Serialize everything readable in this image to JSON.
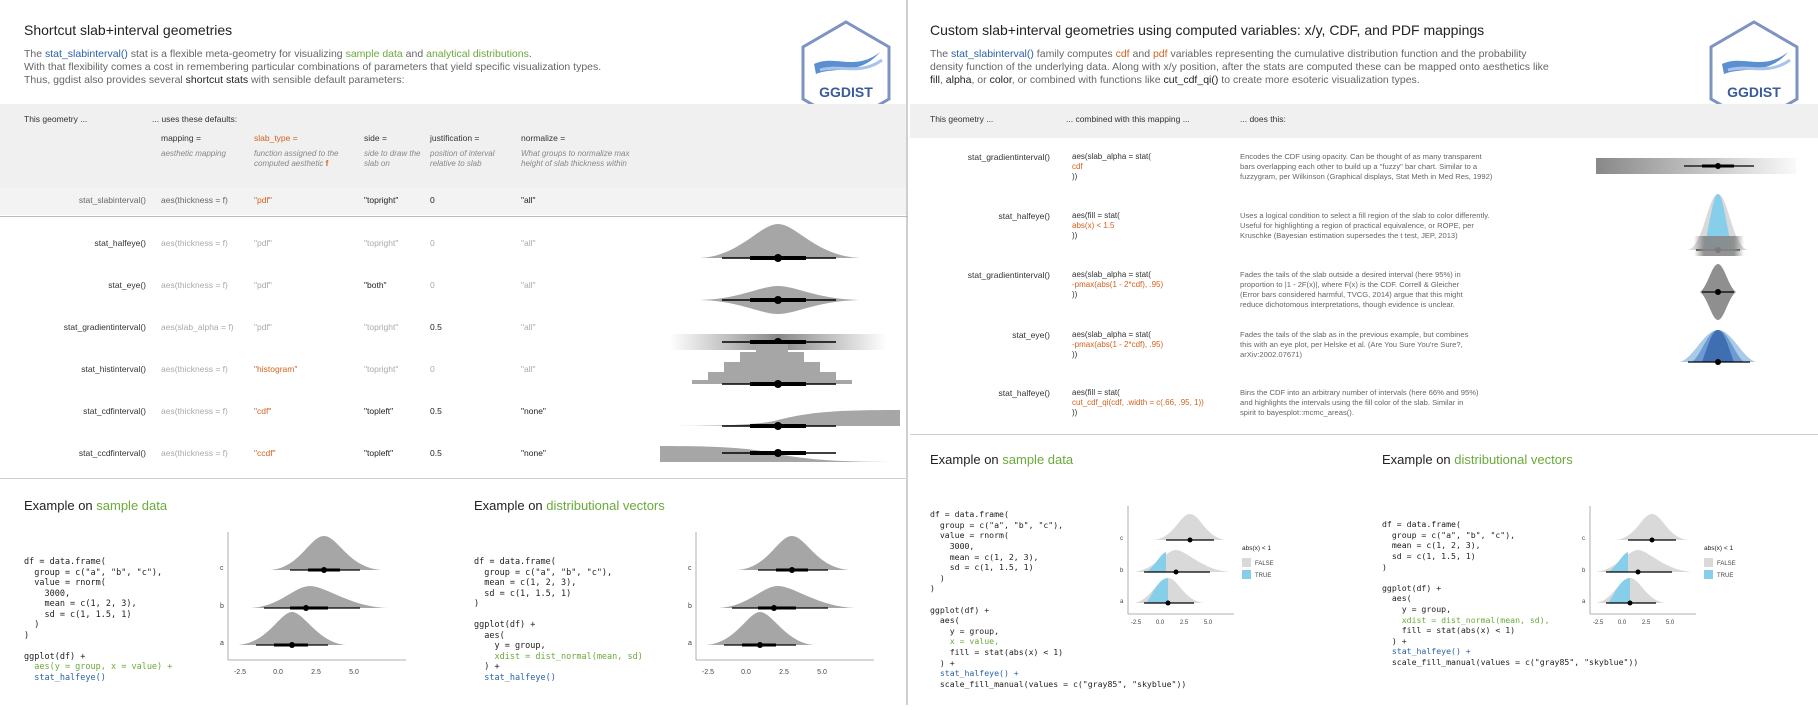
{
  "left": {
    "title": "Shortcut slab+interval geometries",
    "intro": {
      "l1a": "The ",
      "l1b": "stat_slabinterval()",
      "l1c": " stat is a flexible meta-geometry for visualizing ",
      "l1d": "sample data",
      "l1e": " and ",
      "l1f": "analytical distributions",
      "l1g": ".",
      "l2": "With that flexibility comes a cost in remembering particular combinations of parameters that yield specific visualization types.",
      "l3a": "Thus, ggdist also provides several ",
      "l3b": "shortcut stats",
      "l3c": " with sensible default parameters:"
    },
    "logo_text": "GGDIST",
    "header": {
      "geometry": "This geometry ...",
      "defaults": "... uses these defaults:",
      "cols": [
        {
          "name": "mapping =",
          "desc": "aesthetic mapping"
        },
        {
          "name": "slab_type =",
          "desc": "function assigned to the computed aesthetic ",
          "desc_f": "f"
        },
        {
          "name": "side =",
          "desc": "side to draw the slab on"
        },
        {
          "name": "justification =",
          "desc": "position of interval relative to slab"
        },
        {
          "name": "normalize =",
          "desc": "What groups to normalize max height of slab thickness within"
        }
      ]
    },
    "base_row": {
      "name": "stat_slabinterval()",
      "mapping": "aes(thickness = f)",
      "slab_type": "\"pdf\"",
      "side": "\"topright\"",
      "just": "0",
      "normalize": "\"all\""
    },
    "rows": [
      {
        "name": "stat_halfeye()",
        "mapping": "aes(thickness = f)",
        "slab_type": "\"pdf\"",
        "side": "\"topright\"",
        "just": "0",
        "normalize": "\"all\""
      },
      {
        "name": "stat_eye()",
        "mapping": "aes(thickness = f)",
        "slab_type": "\"pdf\"",
        "side": "\"both\"",
        "just": "0",
        "normalize": "\"all\""
      },
      {
        "name": "stat_gradientinterval()",
        "mapping": "aes(slab_alpha = f)",
        "slab_type": "\"pdf\"",
        "side": "\"topright\"",
        "just": "0.5",
        "normalize": "\"all\""
      },
      {
        "name": "stat_histinterval()",
        "mapping": "aes(thickness = f)",
        "slab_type": "\"histogram\"",
        "side": "\"topright\"",
        "just": "0",
        "normalize": "\"all\""
      },
      {
        "name": "stat_cdfinterval()",
        "mapping": "aes(thickness = f)",
        "slab_type": "\"cdf\"",
        "side": "\"topleft\"",
        "just": "0.5",
        "normalize": "\"none\""
      },
      {
        "name": "stat_ccdfinterval()",
        "mapping": "aes(thickness = f)",
        "slab_type": "\"ccdf\"",
        "side": "\"topleft\"",
        "just": "0.5",
        "normalize": "\"none\""
      }
    ],
    "ex1": {
      "title_a": "Example on ",
      "title_b": "sample data"
    },
    "ex2": {
      "title_a": "Example on ",
      "title_b": "distributional vectors"
    },
    "axis_ticks": [
      "-2.5",
      "0.0",
      "2.5",
      "5.0"
    ],
    "y_cats": [
      "c",
      "b",
      "a"
    ]
  },
  "right": {
    "title": "Custom slab+interval geometries using computed variables: x/y, CDF, and PDF mappings",
    "intro": {
      "l1a": "The ",
      "l1b": "stat_slabinterval()",
      "l1c": " family computes ",
      "l1d": "cdf",
      "l1e": " and ",
      "l1f": "pdf",
      "l1g": " variables representing the cumulative distribution function and the probability",
      "l2": "density function of the underlying data. Along with x/y position, after the stats are computed these can be mapped onto aesthetics like",
      "l3a": "fill",
      "l3b": ", ",
      "l3c": "alpha",
      "l3d": ", or ",
      "l3e": "color",
      "l3f": ", or combined with functions like ",
      "l3g": "cut_cdf_qi()",
      "l3h": " to create more esoteric visualization types."
    },
    "logo_text": "GGDIST",
    "header": {
      "geometry": "This geometry ...",
      "mapping": "... combined with this mapping ...",
      "does": "... does this:"
    },
    "rows": [
      {
        "name": "stat_gradientinterval()",
        "code": [
          "aes(slab_alpha = stat(",
          "  cdf",
          "))"
        ],
        "desc": [
          "Encodes the CDF using opacity. Can be thought of as many transparent",
          "bars overlapping each other to build up a \"fuzzy\" bar chart. Similar to a",
          "fuzzygram, per Wilkinson (Graphical displays, Stat Meth in Med Res, 1992)"
        ]
      },
      {
        "name": "stat_halfeye()",
        "code": [
          "aes(fill = stat(",
          "  abs(x) < 1.5",
          "))"
        ],
        "desc": [
          "Uses a logical condition to select a fill region of the slab to color differently.",
          "Useful for highlighting a region of practical equivalence, or ROPE, per",
          "Kruschke (Bayesian estimation supersedes the t test, JEP, 2013)"
        ]
      },
      {
        "name": "stat_gradientinterval()",
        "code": [
          "aes(slab_alpha = stat(",
          "  -pmax(abs(1 - 2*cdf), .95)",
          "))"
        ],
        "desc": [
          "Fades the tails of the slab outside a desired interval (here 95%) in",
          "proportion to |1 - 2F(x)|, where F(x) is the CDF. Correll & Gleicher",
          "(Error bars considered harmful, TVCG, 2014) argue that this might",
          "reduce dichotomous interpretations, though evidence is unclear."
        ]
      },
      {
        "name": "stat_eye()",
        "code": [
          "aes(slab_alpha = stat(",
          "  -pmax(abs(1 - 2*cdf), .95)",
          "))"
        ],
        "desc": [
          "Fades the tails of the slab as in the previous example, but combines",
          "this with an eye plot, per Helske et al. (Are You Sure You're Sure?,",
          "arXiv:2002.07671)"
        ]
      },
      {
        "name": "stat_halfeye()",
        "code": [
          "aes(fill = stat(",
          "  cut_cdf_qi(cdf, .width = c(.66, .95, 1))",
          "))"
        ],
        "desc": [
          "Bins the CDF into an arbitrary number of intervals (here 66% and 95%)",
          "and highlights the intervals using the fill color of the slab. Similar in",
          "spirit to bayesplot::mcmc_areas()."
        ]
      }
    ],
    "ex1": {
      "title_a": "Example on ",
      "title_b": "sample data"
    },
    "ex2": {
      "title_a": "Example on ",
      "title_b": "distributional vectors"
    },
    "legend_title": "abs(x) < 1",
    "legend_false": "FALSE",
    "legend_true": "TRUE",
    "axis_ticks": [
      "-2.5",
      "0.0",
      "2.5",
      "5.0"
    ],
    "y_cats": [
      "c",
      "b",
      "a"
    ]
  },
  "code": {
    "left_ex1": [
      "df = data.frame(",
      "  group = c(\"a\", \"b\", \"c\"),",
      "  value = rnorm(",
      "    3000,",
      "    mean = c(1, 2, 3),",
      "    sd = c(1, 1.5, 1)",
      "  )",
      ")",
      "",
      "ggplot(df) +",
      "  aes(y = group, x = value) +",
      "  stat_halfeye()"
    ],
    "left_ex2": [
      "df = data.frame(",
      "  group = c(\"a\", \"b\", \"c\"),",
      "  mean = c(1, 2, 3),",
      "  sd = c(1, 1.5, 1)",
      ")",
      "",
      "ggplot(df) +",
      "  aes(",
      "    y = group,",
      "    xdist = dist_normal(mean, sd)",
      "  ) +",
      "  stat_halfeye()"
    ],
    "right_ex1": [
      "df = data.frame(",
      "  group = c(\"a\", \"b\", \"c\"),",
      "  value = rnorm(",
      "    3000,",
      "    mean = c(1, 2, 3),",
      "    sd = c(1, 1.5, 1)",
      "  )",
      ")",
      "",
      "ggplot(df) +",
      "  aes(",
      "    y = group,",
      "    x = value,",
      "    fill = stat(abs(x) < 1)",
      "  ) +",
      "  stat_halfeye() +",
      "  scale_fill_manual(values = c(\"gray85\", \"skyblue\"))"
    ],
    "right_ex2": [
      "df = data.frame(",
      "  group = c(\"a\", \"b\", \"c\"),",
      "  mean = c(1, 2, 3),",
      "  sd = c(1, 1.5, 1)",
      ")",
      "",
      "ggplot(df) +",
      "  aes(",
      "    y = group,",
      "    xdist = dist_normal(mean, sd),",
      "    fill = stat(abs(x) < 1)",
      "  ) +",
      "  stat_halfeye() +",
      "  scale_fill_manual(values = c(\"gray85\", \"skyblue\"))"
    ]
  },
  "colors": {
    "accent_blue": "#2a62a8",
    "accent_green": "#6aaa3a",
    "accent_orange": "#d2621d",
    "slab_grey": "#a6a6a6",
    "skyblue": "#87ceeb",
    "gray85": "#d9d9d9"
  }
}
